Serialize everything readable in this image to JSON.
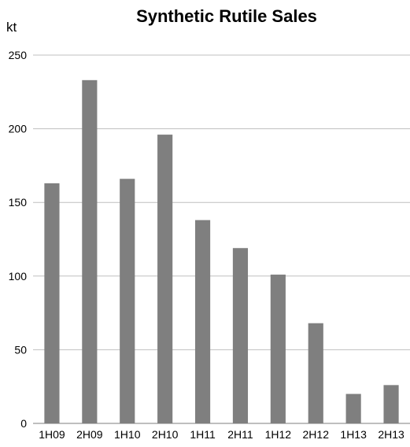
{
  "chart_data": {
    "type": "bar",
    "title": "Synthetic Rutile Sales",
    "unit_label": "kt",
    "xlabel": "",
    "ylabel": "",
    "categories": [
      "1H09",
      "2H09",
      "1H10",
      "2H10",
      "1H11",
      "2H11",
      "1H12",
      "2H12",
      "1H13",
      "2H13"
    ],
    "values": [
      163,
      233,
      166,
      196,
      138,
      119,
      101,
      68,
      20,
      26
    ],
    "ylim": [
      0,
      250
    ],
    "yticks": [
      0,
      50,
      100,
      150,
      200,
      250
    ],
    "grid": true,
    "legend": "none",
    "bar_color": "#7f7f7f"
  }
}
